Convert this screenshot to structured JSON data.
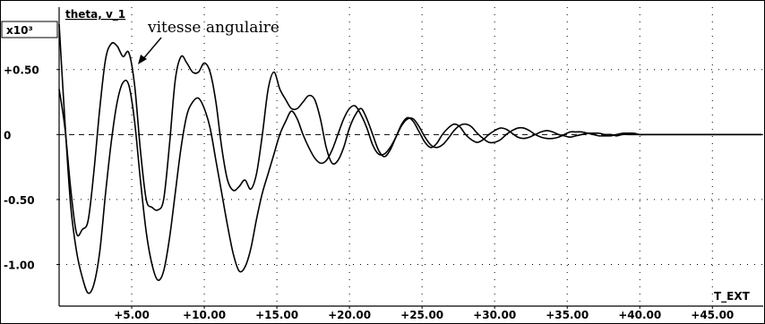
{
  "chart_data": {
    "type": "line",
    "title": "theta, v_1",
    "scale_label": "x10³",
    "xlabel": "T_EXT",
    "annotation": "vitesse angulaire",
    "xlim": [
      0,
      48.5
    ],
    "ylim": [
      -1.32,
      0.98
    ],
    "x_ticks": [
      {
        "value": 5,
        "label": "+5.00"
      },
      {
        "value": 10,
        "label": "+10.00"
      },
      {
        "value": 15,
        "label": "+15.00"
      },
      {
        "value": 20,
        "label": "+20.00"
      },
      {
        "value": 25,
        "label": "+25.00"
      },
      {
        "value": 30,
        "label": "+30.00"
      },
      {
        "value": 35,
        "label": "+35.00"
      },
      {
        "value": 40,
        "label": "+40.00"
      },
      {
        "value": 45,
        "label": "+45.00"
      }
    ],
    "y_ticks": [
      {
        "value": 0.5,
        "label": "+0.50"
      },
      {
        "value": 0,
        "label": "0"
      },
      {
        "value": -0.5,
        "label": "-0.50"
      },
      {
        "value": -1.0,
        "label": "-1.00"
      }
    ],
    "grid": true,
    "zero_line": "dashed",
    "series": [
      {
        "x": [
          0,
          0.4,
          0.8,
          1.2,
          1.6,
          2.0,
          2.4,
          2.8,
          3.2,
          3.6,
          4.0,
          4.4,
          4.8,
          5.2,
          5.6,
          6.0,
          6.4,
          6.8,
          7.2,
          7.6,
          8.0,
          8.4,
          8.8,
          9.2,
          9.6,
          10.0,
          10.4,
          10.8,
          11.2,
          11.6,
          12.0,
          12.4,
          12.8,
          13.2,
          13.6,
          14.0,
          14.4,
          14.8,
          15.2,
          15.6,
          16.0,
          16.4,
          16.8,
          17.2,
          17.6,
          18.0,
          18.4,
          18.8,
          19.2,
          19.6,
          20.0,
          20.4,
          20.8,
          21.2,
          21.6,
          22.0,
          22.4,
          22.8,
          23.2,
          23.6,
          24.0,
          24.4,
          24.8,
          25.2,
          25.6,
          26.0,
          26.4,
          26.8,
          27.2,
          27.6,
          28.0,
          28.4,
          28.8,
          29.2,
          29.6,
          30.0,
          30.4,
          30.8,
          31.2,
          31.6,
          32.0,
          32.4,
          32.8,
          33.2,
          33.6,
          34.0,
          34.4,
          34.8,
          35.2,
          35.6,
          36.0,
          36.4,
          36.8,
          37.2,
          37.6,
          38.0,
          38.4,
          38.8,
          39.2,
          39.6,
          40.0,
          40.4,
          40.8,
          41.2,
          41.6,
          42.0,
          42.4,
          42.8,
          43.2,
          43.6,
          44.0,
          44.4,
          44.8,
          45.2,
          45.6,
          46.0,
          46.4,
          46.8,
          47.2,
          47.6,
          48.0,
          48.4
        ],
        "y": [
          0.35,
          0.05,
          -0.42,
          -0.76,
          -0.73,
          -0.66,
          -0.28,
          0.2,
          0.58,
          0.7,
          0.68,
          0.6,
          0.63,
          0.38,
          -0.12,
          -0.5,
          -0.56,
          -0.58,
          -0.5,
          -0.08,
          0.42,
          0.6,
          0.55,
          0.48,
          0.48,
          0.55,
          0.48,
          0.25,
          -0.1,
          -0.35,
          -0.43,
          -0.4,
          -0.35,
          -0.42,
          -0.3,
          0.0,
          0.35,
          0.48,
          0.35,
          0.27,
          0.2,
          0.2,
          0.25,
          0.3,
          0.27,
          0.12,
          -0.1,
          -0.22,
          -0.2,
          -0.1,
          0.05,
          0.15,
          0.2,
          0.12,
          0.0,
          -0.12,
          -0.17,
          -0.12,
          -0.02,
          0.08,
          0.13,
          0.1,
          0.02,
          -0.06,
          -0.1,
          -0.07,
          0.0,
          0.05,
          0.08,
          0.06,
          0.0,
          -0.04,
          -0.06,
          -0.04,
          0.0,
          0.03,
          0.05,
          0.04,
          0.01,
          -0.02,
          -0.03,
          -0.02,
          0.0,
          0.02,
          0.03,
          0.02,
          0.0,
          -0.01,
          -0.02,
          -0.01,
          0.0,
          0.01,
          0.01,
          0.01,
          0.0,
          0.0,
          -0.01,
          0.0,
          0.0,
          0.0,
          0.0,
          0.0,
          0.0,
          0.0,
          0.0,
          0.0,
          0.0,
          0.0,
          0.0,
          0.0,
          0.0,
          0.0,
          0.0,
          0.0,
          0.0,
          0.0,
          0.0,
          0.0,
          0.0,
          0.0,
          0.0,
          0.0
        ]
      },
      {
        "x": [
          0,
          0.4,
          0.8,
          1.2,
          1.6,
          2.0,
          2.4,
          2.8,
          3.2,
          3.6,
          4.0,
          4.4,
          4.8,
          5.2,
          5.6,
          6.0,
          6.4,
          6.8,
          7.2,
          7.6,
          8.0,
          8.4,
          8.8,
          9.2,
          9.6,
          10.0,
          10.4,
          10.8,
          11.2,
          11.6,
          12.0,
          12.4,
          12.8,
          13.2,
          13.6,
          14.0,
          14.4,
          14.8,
          15.2,
          15.6,
          16.0,
          16.4,
          16.8,
          17.2,
          17.6,
          18.0,
          18.4,
          18.8,
          19.2,
          19.6,
          20.0,
          20.4,
          20.8,
          21.2,
          21.6,
          22.0,
          22.4,
          22.8,
          23.2,
          23.6,
          24.0,
          24.4,
          24.8,
          25.2,
          25.6,
          26.0,
          26.4,
          26.8,
          27.2,
          27.6,
          28.0,
          28.4,
          28.8,
          29.2,
          29.6,
          30.0,
          30.4,
          30.8,
          31.2,
          31.6,
          32.0,
          32.4,
          32.8,
          33.2,
          33.6,
          34.0,
          34.4,
          34.8,
          35.2,
          35.6,
          36.0,
          36.4,
          36.8,
          37.2,
          37.6,
          38.0,
          38.4,
          38.8,
          39.2,
          39.6,
          40.0,
          40.4,
          40.8,
          41.2,
          41.6,
          42.0,
          42.4,
          42.8,
          43.2,
          43.6,
          44.0,
          44.4,
          44.8,
          45.2,
          45.6,
          46.0,
          46.4,
          46.8,
          47.2,
          47.6,
          48.0,
          48.4
        ],
        "y": [
          0.85,
          0.1,
          -0.55,
          -0.9,
          -1.1,
          -1.22,
          -1.15,
          -0.9,
          -0.45,
          -0.05,
          0.25,
          0.4,
          0.38,
          0.1,
          -0.35,
          -0.75,
          -1.0,
          -1.12,
          -1.05,
          -0.8,
          -0.45,
          -0.1,
          0.15,
          0.25,
          0.28,
          0.2,
          0.05,
          -0.2,
          -0.45,
          -0.7,
          -0.92,
          -1.05,
          -1.02,
          -0.88,
          -0.65,
          -0.45,
          -0.3,
          -0.15,
          0.0,
          0.1,
          0.18,
          0.12,
          0.0,
          -0.1,
          -0.18,
          -0.22,
          -0.2,
          -0.12,
          0.0,
          0.12,
          0.2,
          0.22,
          0.15,
          0.05,
          -0.08,
          -0.15,
          -0.15,
          -0.1,
          -0.02,
          0.07,
          0.12,
          0.12,
          0.06,
          -0.02,
          -0.08,
          -0.1,
          -0.08,
          -0.03,
          0.03,
          0.07,
          0.08,
          0.06,
          0.01,
          -0.03,
          -0.06,
          -0.06,
          -0.04,
          0.0,
          0.03,
          0.05,
          0.05,
          0.03,
          0.0,
          -0.02,
          -0.03,
          -0.03,
          -0.02,
          0.0,
          0.02,
          0.02,
          0.02,
          0.01,
          0.0,
          -0.01,
          -0.01,
          -0.01,
          0.0,
          0.01,
          0.01,
          0.01,
          0.0,
          0.0,
          0.0,
          0.0,
          0.0,
          0.0,
          0.0,
          0.0,
          0.0,
          0.0,
          0.0,
          0.0,
          0.0,
          0.0,
          0.0,
          0.0,
          0.0,
          0.0,
          0.0,
          0.0,
          0.0,
          0.0
        ]
      }
    ]
  }
}
